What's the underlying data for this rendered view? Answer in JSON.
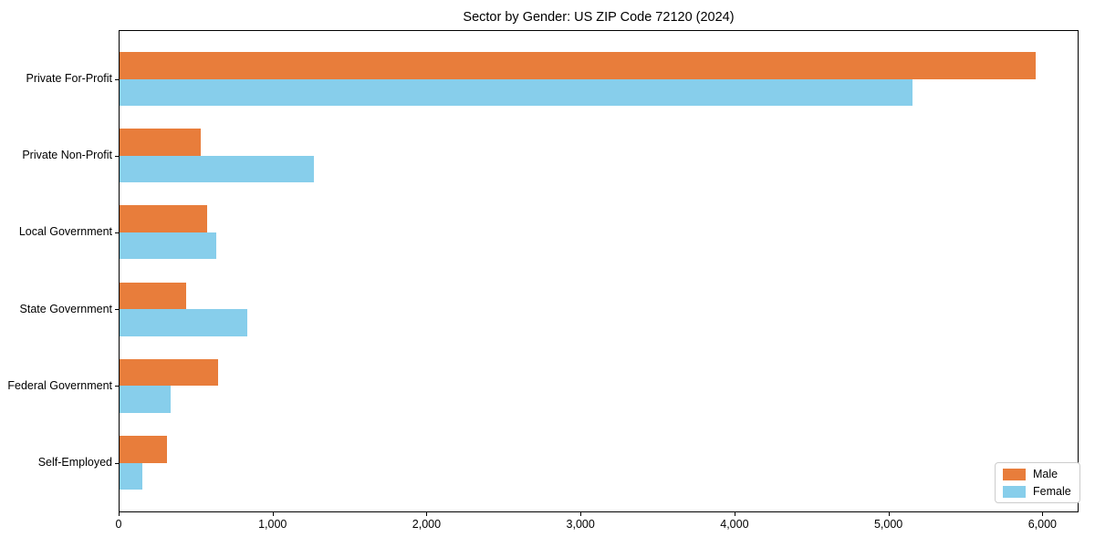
{
  "chart_data": {
    "type": "bar",
    "orientation": "horizontal",
    "title": "Sector by Gender: US ZIP Code 72120 (2024)",
    "categories": [
      "Private For-Profit",
      "Private Non-Profit",
      "Local Government",
      "State Government",
      "Federal Government",
      "Self-Employed"
    ],
    "series": [
      {
        "name": "Male",
        "color": "#e87d3b",
        "values": [
          5950,
          530,
          570,
          430,
          640,
          310
        ]
      },
      {
        "name": "Female",
        "color": "#87ceeb",
        "values": [
          5150,
          1260,
          630,
          830,
          330,
          150
        ]
      }
    ],
    "xlabel": "",
    "ylabel": "",
    "xlim": [
      0,
      6235
    ],
    "xticks": [
      0,
      1000,
      2000,
      3000,
      4000,
      5000,
      6000
    ],
    "xtick_labels": [
      "0",
      "1,000",
      "2,000",
      "3,000",
      "4,000",
      "5,000",
      "6,000"
    ],
    "grid": false,
    "legend_position": "lower right",
    "background_color": "#ffffff",
    "axis_color": "#000000",
    "legend_border_color": "#cccccc"
  }
}
